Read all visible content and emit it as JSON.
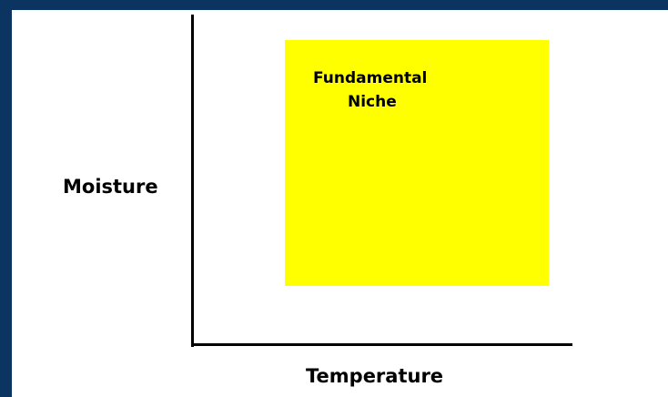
{
  "diagram": {
    "x_axis_label": "Temperature",
    "y_axis_label": "Moisture",
    "region": {
      "label_line1": "Fundamental",
      "label_line2": "Niche",
      "color": "#ffff00"
    }
  },
  "colors": {
    "frame": "#0b3461",
    "background": "#ffffff",
    "axis": "#000000"
  }
}
